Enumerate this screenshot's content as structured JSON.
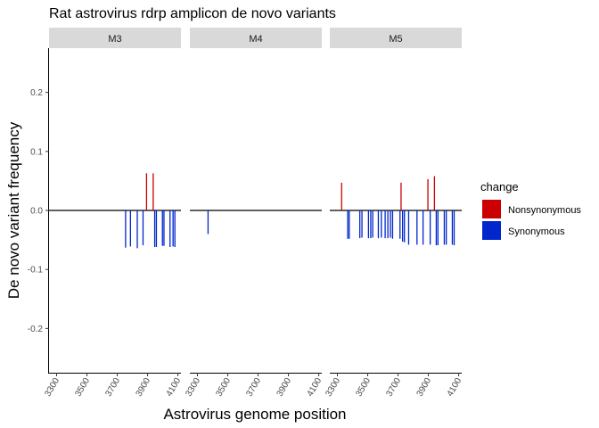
{
  "chart_data": {
    "type": "bar",
    "title": "Rat astrovirus rdrp amplicon de novo variants",
    "xlabel": "Astrovirus genome position",
    "ylabel": "De novo variant frequency",
    "xlim": [
      3250,
      4120
    ],
    "ylim": [
      -0.275,
      0.275
    ],
    "x_ticks": [
      3300,
      3500,
      3700,
      3900,
      4100
    ],
    "y_ticks": [
      -0.2,
      -0.1,
      0.0,
      0.1,
      0.2
    ],
    "y_tick_labels": [
      "-0.2",
      "-0.1",
      "0.0",
      "0.1",
      "0.2"
    ],
    "grid": false,
    "legend": {
      "title": "change",
      "position": "right",
      "entries": [
        {
          "label": "Nonsynonymous",
          "color": "#cc0000"
        },
        {
          "label": "Synonymous",
          "color": "#0026cc"
        }
      ]
    },
    "panels": [
      {
        "name": "M3",
        "points": [
          {
            "x": 3755,
            "y": -0.063,
            "change": "Synonymous"
          },
          {
            "x": 3787,
            "y": -0.061,
            "change": "Synonymous"
          },
          {
            "x": 3832,
            "y": -0.064,
            "change": "Synonymous"
          },
          {
            "x": 3870,
            "y": -0.059,
            "change": "Synonymous"
          },
          {
            "x": 3893,
            "y": 0.063,
            "change": "Nonsynonymous"
          },
          {
            "x": 3937,
            "y": 0.063,
            "change": "Nonsynonymous"
          },
          {
            "x": 3947,
            "y": -0.062,
            "change": "Synonymous"
          },
          {
            "x": 3958,
            "y": -0.062,
            "change": "Synonymous"
          },
          {
            "x": 3998,
            "y": -0.06,
            "change": "Synonymous"
          },
          {
            "x": 4008,
            "y": -0.06,
            "change": "Synonymous"
          },
          {
            "x": 4048,
            "y": -0.062,
            "change": "Synonymous"
          },
          {
            "x": 4068,
            "y": -0.061,
            "change": "Synonymous"
          },
          {
            "x": 4080,
            "y": -0.062,
            "change": "Synonymous"
          }
        ]
      },
      {
        "name": "M4",
        "points": [
          {
            "x": 3370,
            "y": -0.04,
            "change": "Synonymous"
          }
        ]
      },
      {
        "name": "M5",
        "points": [
          {
            "x": 3328,
            "y": 0.047,
            "change": "Nonsynonymous"
          },
          {
            "x": 3368,
            "y": -0.048,
            "change": "Synonymous"
          },
          {
            "x": 3378,
            "y": -0.048,
            "change": "Synonymous"
          },
          {
            "x": 3448,
            "y": -0.047,
            "change": "Synonymous"
          },
          {
            "x": 3462,
            "y": -0.046,
            "change": "Synonymous"
          },
          {
            "x": 3505,
            "y": -0.047,
            "change": "Synonymous"
          },
          {
            "x": 3520,
            "y": -0.047,
            "change": "Synonymous"
          },
          {
            "x": 3533,
            "y": -0.046,
            "change": "Synonymous"
          },
          {
            "x": 3570,
            "y": -0.047,
            "change": "Synonymous"
          },
          {
            "x": 3590,
            "y": -0.046,
            "change": "Synonymous"
          },
          {
            "x": 3615,
            "y": -0.047,
            "change": "Synonymous"
          },
          {
            "x": 3633,
            "y": -0.047,
            "change": "Synonymous"
          },
          {
            "x": 3650,
            "y": -0.046,
            "change": "Synonymous"
          },
          {
            "x": 3664,
            "y": -0.048,
            "change": "Synonymous"
          },
          {
            "x": 3713,
            "y": -0.048,
            "change": "Synonymous"
          },
          {
            "x": 3720,
            "y": 0.047,
            "change": "Nonsynonymous"
          },
          {
            "x": 3730,
            "y": -0.053,
            "change": "Synonymous"
          },
          {
            "x": 3742,
            "y": -0.054,
            "change": "Synonymous"
          },
          {
            "x": 3770,
            "y": -0.058,
            "change": "Synonymous"
          },
          {
            "x": 3825,
            "y": -0.058,
            "change": "Synonymous"
          },
          {
            "x": 3865,
            "y": -0.058,
            "change": "Synonymous"
          },
          {
            "x": 3897,
            "y": 0.053,
            "change": "Nonsynonymous"
          },
          {
            "x": 3912,
            "y": -0.058,
            "change": "Synonymous"
          },
          {
            "x": 3940,
            "y": 0.058,
            "change": "Nonsynonymous"
          },
          {
            "x": 3952,
            "y": -0.059,
            "change": "Synonymous"
          },
          {
            "x": 3963,
            "y": -0.059,
            "change": "Synonymous"
          },
          {
            "x": 4005,
            "y": -0.058,
            "change": "Synonymous"
          },
          {
            "x": 4018,
            "y": -0.058,
            "change": "Synonymous"
          },
          {
            "x": 4058,
            "y": -0.058,
            "change": "Synonymous"
          },
          {
            "x": 4070,
            "y": -0.059,
            "change": "Synonymous"
          }
        ]
      }
    ]
  }
}
